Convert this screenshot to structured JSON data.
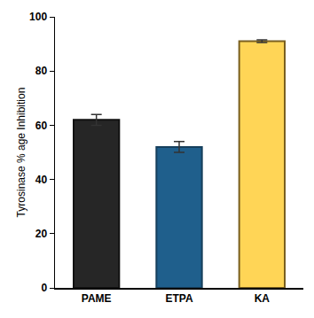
{
  "chart_data": {
    "type": "bar",
    "y_label": "Tyrosinase % age Inhibition",
    "categories": [
      "PAME",
      "ETPA",
      "KA"
    ],
    "values": [
      62,
      52,
      91
    ],
    "errors": [
      2,
      2,
      0.5
    ],
    "colors": [
      "#262626",
      "#1f5f8c",
      "#ffd556"
    ],
    "ylim": [
      0,
      100
    ],
    "yticks": [
      0,
      20,
      40,
      60,
      80,
      100
    ],
    "grid": false
  }
}
